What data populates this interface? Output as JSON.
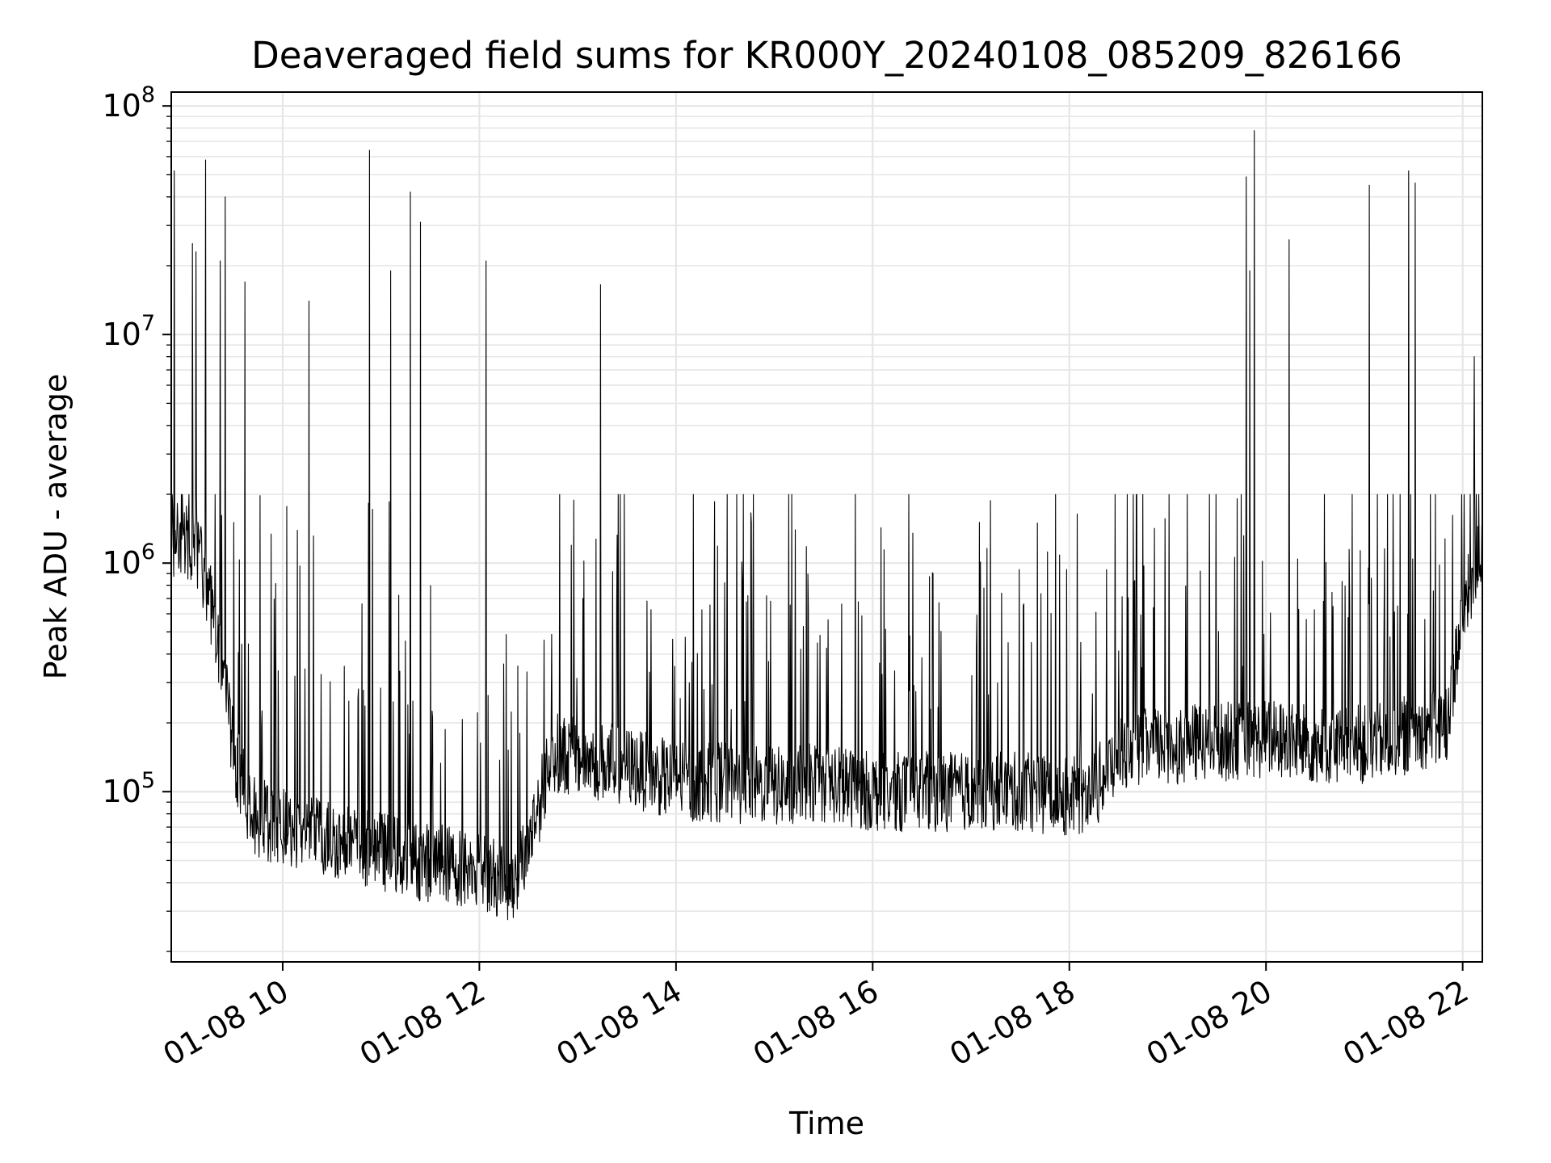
{
  "chart_data": {
    "type": "line",
    "title": "Deaveraged field sums for KR000Y_20240108_085209_826166",
    "xlabel": "Time",
    "ylabel": "Peak ADU - average",
    "y_scale": "log",
    "ylim": [
      18000,
      115000000
    ],
    "xlim": [
      "2024-01-08 08:52",
      "2024-01-08 22:12"
    ],
    "grid": true,
    "line_color": "#000000",
    "grid_color": "#e6e6e6",
    "x_ticks": [
      {
        "value": "2024-01-08 10:00",
        "label": "01-08 10"
      },
      {
        "value": "2024-01-08 12:00",
        "label": "01-08 12"
      },
      {
        "value": "2024-01-08 14:00",
        "label": "01-08 14"
      },
      {
        "value": "2024-01-08 16:00",
        "label": "01-08 16"
      },
      {
        "value": "2024-01-08 18:00",
        "label": "01-08 18"
      },
      {
        "value": "2024-01-08 20:00",
        "label": "01-08 20"
      },
      {
        "value": "2024-01-08 22:00",
        "label": "01-08 22"
      }
    ],
    "y_ticks": [
      {
        "value": 100000,
        "base": "10",
        "exp": "5"
      },
      {
        "value": 1000000,
        "base": "10",
        "exp": "6"
      },
      {
        "value": 10000000,
        "base": "10",
        "exp": "7"
      },
      {
        "value": 100000000,
        "base": "10",
        "exp": "8"
      }
    ],
    "series": [
      {
        "x": [
          "2024-01-08 08:52",
          "2024-01-08 09:00",
          "2024-01-08 09:10",
          "2024-01-08 09:20",
          "2024-01-08 09:30",
          "2024-01-08 09:40",
          "2024-01-08 10:00",
          "2024-01-08 10:20",
          "2024-01-08 10:40",
          "2024-01-08 11:00",
          "2024-01-08 11:20",
          "2024-01-08 11:40",
          "2024-01-08 12:00",
          "2024-01-08 12:20",
          "2024-01-08 12:30",
          "2024-01-08 12:45",
          "2024-01-08 13:00",
          "2024-01-08 13:30",
          "2024-01-08 14:00",
          "2024-01-08 14:30",
          "2024-01-08 15:00",
          "2024-01-08 15:30",
          "2024-01-08 16:00",
          "2024-01-08 16:30",
          "2024-01-08 17:00",
          "2024-01-08 17:30",
          "2024-01-08 18:00",
          "2024-01-08 18:15",
          "2024-01-08 18:30",
          "2024-01-08 19:00",
          "2024-01-08 19:30",
          "2024-01-08 20:00",
          "2024-01-08 20:30",
          "2024-01-08 21:00",
          "2024-01-08 21:30",
          "2024-01-08 21:50",
          "2024-01-08 22:00",
          "2024-01-08 22:12"
        ],
        "y": [
          1200000,
          1300000,
          1000000,
          500000,
          150000,
          80000,
          70000,
          65000,
          60000,
          55000,
          50000,
          48000,
          45000,
          40000,
          60000,
          150000,
          140000,
          130000,
          110000,
          110000,
          105000,
          110000,
          100000,
          100000,
          100000,
          100000,
          95000,
          100000,
          150000,
          160000,
          165000,
          170000,
          160000,
          160000,
          180000,
          200000,
          600000,
          1200000
        ]
      }
    ],
    "spikes": [
      {
        "x": "2024-01-08 08:54",
        "y": 52000000
      },
      {
        "x": "2024-01-08 09:05",
        "y": 25000000
      },
      {
        "x": "2024-01-08 09:07",
        "y": 23000000
      },
      {
        "x": "2024-01-08 09:13",
        "y": 58000000
      },
      {
        "x": "2024-01-08 09:22",
        "y": 21000000
      },
      {
        "x": "2024-01-08 09:25",
        "y": 40000000
      },
      {
        "x": "2024-01-08 09:37",
        "y": 17000000
      },
      {
        "x": "2024-01-08 10:16",
        "y": 14000000
      },
      {
        "x": "2024-01-08 10:53",
        "y": 64000000
      },
      {
        "x": "2024-01-08 11:06",
        "y": 19000000
      },
      {
        "x": "2024-01-08 11:18",
        "y": 42000000
      },
      {
        "x": "2024-01-08 11:24",
        "y": 31000000
      },
      {
        "x": "2024-01-08 12:04",
        "y": 21000000
      },
      {
        "x": "2024-01-08 13:14",
        "y": 16500000
      },
      {
        "x": "2024-01-08 19:48",
        "y": 49000000
      },
      {
        "x": "2024-01-08 19:50",
        "y": 19000000
      },
      {
        "x": "2024-01-08 19:53",
        "y": 78000000
      },
      {
        "x": "2024-01-08 20:14",
        "y": 26000000
      },
      {
        "x": "2024-01-08 21:03",
        "y": 45000000
      },
      {
        "x": "2024-01-08 21:27",
        "y": 52000000
      },
      {
        "x": "2024-01-08 21:31",
        "y": 46000000
      },
      {
        "x": "2024-01-08 22:07",
        "y": 8000000
      }
    ]
  }
}
